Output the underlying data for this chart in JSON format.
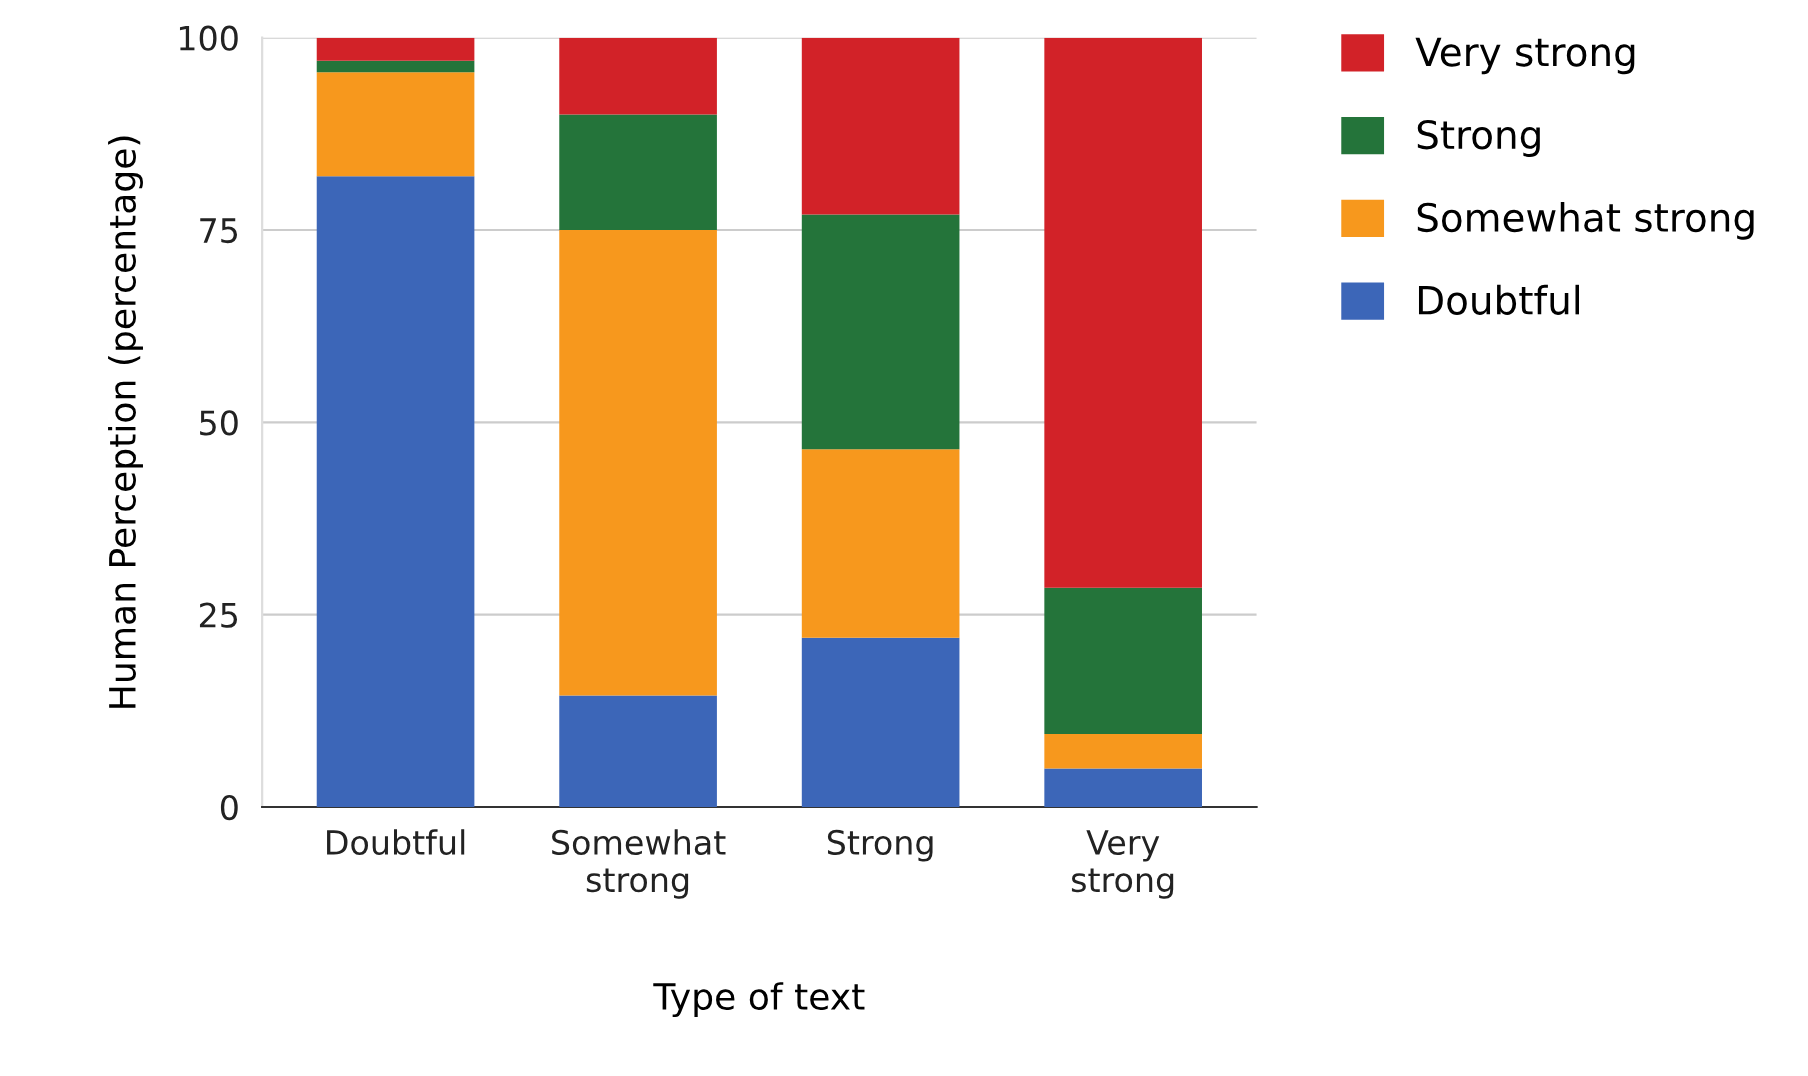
{
  "chart_data": {
    "type": "bar",
    "stacked": true,
    "xlabel": "Type of text",
    "ylabel": "Human Perception (percentage)",
    "categories": [
      "Doubtful",
      "Somewhat strong",
      "Strong",
      "Very strong"
    ],
    "series": [
      {
        "name": "Doubtful",
        "color": "#3c66b8",
        "values": [
          82,
          14.5,
          22,
          5
        ]
      },
      {
        "name": "Somewhat strong",
        "color": "#f7981d",
        "values": [
          13.5,
          60.5,
          24.5,
          4.5
        ]
      },
      {
        "name": "Strong",
        "color": "#24743a",
        "values": [
          1.5,
          15,
          30.5,
          19
        ]
      },
      {
        "name": "Very strong",
        "color": "#d22228",
        "values": [
          3,
          10,
          23,
          71.5
        ]
      }
    ],
    "ylim": [
      0,
      100
    ],
    "yticks": [
      0,
      25,
      50,
      75,
      100
    ],
    "grid": "y",
    "legend": "top right"
  }
}
